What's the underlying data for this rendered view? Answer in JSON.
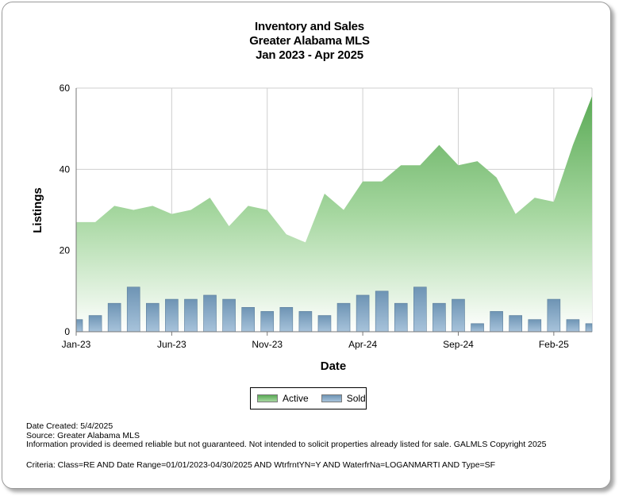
{
  "title": {
    "line1": "Inventory and Sales",
    "line2": "Greater Alabama MLS",
    "line3": "Jan 2023 - Apr 2025"
  },
  "legend": {
    "active": "Active",
    "sold": "Sold"
  },
  "footer": {
    "created": "Date Created: 5/4/2025",
    "source": "Source: Greater Alabama MLS",
    "disclaimer": "Information provided is deemed reliable but not guaranteed. Not intended to solicit properties already listed for sale. GALMLS Copyright 2025",
    "criteria": "Criteria: Class=RE AND Date Range=01/01/2023-04/30/2025 AND WtrfrntYN=Y AND WaterfrNa=LOGANMARTI AND Type=SF"
  },
  "colors": {
    "active_top": "#5aaa55",
    "active_light": "#a6d7a0",
    "sold": "#6e94b4"
  },
  "chart_data": {
    "type": "bar",
    "xlabel": "Date",
    "ylabel": "Listings",
    "ylim": [
      0,
      60
    ],
    "yticks": [
      0,
      20,
      40,
      60
    ],
    "xtick_labels": [
      "Jan-23",
      "Jun-23",
      "Nov-23",
      "Apr-24",
      "Sep-24",
      "Feb-25"
    ],
    "grid": true,
    "legend_position": "bottom",
    "categories": [
      "Jan-23",
      "Feb-23",
      "Mar-23",
      "Apr-23",
      "May-23",
      "Jun-23",
      "Jul-23",
      "Aug-23",
      "Sep-23",
      "Oct-23",
      "Nov-23",
      "Dec-23",
      "Jan-24",
      "Feb-24",
      "Mar-24",
      "Apr-24",
      "May-24",
      "Jun-24",
      "Jul-24",
      "Aug-24",
      "Sep-24",
      "Oct-24",
      "Nov-24",
      "Dec-24",
      "Jan-25",
      "Feb-25",
      "Mar-25",
      "Apr-25"
    ],
    "series": [
      {
        "name": "Active",
        "type": "area",
        "values": [
          27,
          27,
          31,
          30,
          31,
          29,
          30,
          33,
          26,
          31,
          30,
          24,
          22,
          34,
          30,
          37,
          37,
          41,
          41,
          46,
          41,
          42,
          38,
          29,
          33,
          32,
          46,
          58
        ]
      },
      {
        "name": "Sold",
        "type": "bar",
        "values": [
          3,
          4,
          7,
          11,
          7,
          8,
          8,
          9,
          8,
          6,
          5,
          6,
          5,
          4,
          7,
          9,
          10,
          7,
          11,
          7,
          8,
          2,
          5,
          4,
          3,
          8,
          3,
          2
        ]
      }
    ]
  }
}
